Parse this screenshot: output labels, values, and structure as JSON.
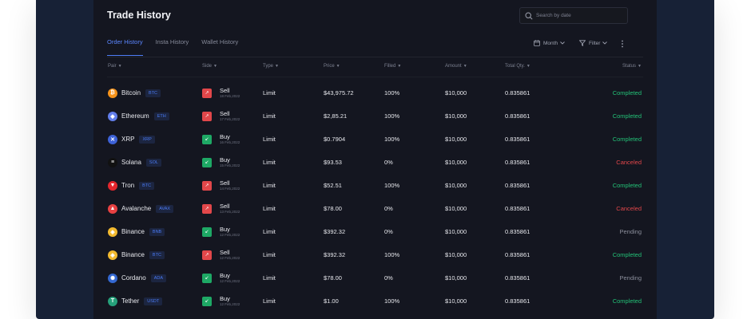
{
  "header": {
    "title": "Trade History"
  },
  "search": {
    "placeholder": "Search by date"
  },
  "tabs": [
    {
      "label": "Order History",
      "active": true
    },
    {
      "label": "Insta History",
      "active": false
    },
    {
      "label": "Wallet History",
      "active": false
    }
  ],
  "toolbar": {
    "month_label": "Month",
    "filter_label": "Filter"
  },
  "columns": {
    "pair": "Pair",
    "side": "Side",
    "type": "Type",
    "price": "Price",
    "filled": "Filled",
    "amount": "Amount",
    "total": "Total Qty.",
    "status": "Status"
  },
  "colors": {
    "accent": "#4f7df7",
    "completed": "#23c277",
    "canceled": "#e2474a",
    "pending": "#8b8e9b",
    "sell": "#e2474a",
    "buy": "#1ea965"
  },
  "rows": [
    {
      "coin": "Bitcoin",
      "ticker": "BTC",
      "icon_color": "#f7931a",
      "icon_glyph": "₿",
      "side": "Sell",
      "date": "18 Feb,2022",
      "type": "Limit",
      "price": "$43,975.72",
      "filled": "100%",
      "amount": "$10,000",
      "total": "0.835861",
      "status": "Completed"
    },
    {
      "coin": "Ethereum",
      "ticker": "ETH",
      "icon_color": "#627eea",
      "icon_glyph": "◆",
      "side": "Sell",
      "date": "17 Feb,2022",
      "type": "Limit",
      "price": "$2,85.21",
      "filled": "100%",
      "amount": "$10,000",
      "total": "0.835861",
      "status": "Completed"
    },
    {
      "coin": "XRP",
      "ticker": "XRP",
      "icon_color": "#3d62d8",
      "icon_glyph": "✕",
      "side": "Buy",
      "date": "16 Feb,2022",
      "type": "Limit",
      "price": "$0.7904",
      "filled": "100%",
      "amount": "$10,000",
      "total": "0.835861",
      "status": "Completed"
    },
    {
      "coin": "Solana",
      "ticker": "SOL",
      "icon_color": "#111111",
      "icon_glyph": "≡",
      "side": "Buy",
      "date": "15 Feb,2022",
      "type": "Limit",
      "price": "$93.53",
      "filled": "0%",
      "amount": "$10,000",
      "total": "0.835861",
      "status": "Canceled"
    },
    {
      "coin": "Tron",
      "ticker": "BTC",
      "icon_color": "#e3262d",
      "icon_glyph": "▼",
      "side": "Sell",
      "date": "14 Feb,2022",
      "type": "Limit",
      "price": "$52.51",
      "filled": "100%",
      "amount": "$10,000",
      "total": "0.835861",
      "status": "Completed"
    },
    {
      "coin": "Avalanche",
      "ticker": "AVAX",
      "icon_color": "#e84142",
      "icon_glyph": "▲",
      "side": "Sell",
      "date": "13 Feb,2022",
      "type": "Limit",
      "price": "$78.00",
      "filled": "0%",
      "amount": "$10,000",
      "total": "0.835861",
      "status": "Canceled"
    },
    {
      "coin": "Binance",
      "ticker": "BNB",
      "icon_color": "#f3ba2f",
      "icon_glyph": "◈",
      "side": "Buy",
      "date": "12 Feb,2022",
      "type": "Limit",
      "price": "$392.32",
      "filled": "0%",
      "amount": "$10,000",
      "total": "0.835861",
      "status": "Pending"
    },
    {
      "coin": "Binance",
      "ticker": "BTC",
      "icon_color": "#f3ba2f",
      "icon_glyph": "◈",
      "side": "Sell",
      "date": "12 Feb,2022",
      "type": "Limit",
      "price": "$392.32",
      "filled": "100%",
      "amount": "$10,000",
      "total": "0.835861",
      "status": "Completed"
    },
    {
      "coin": "Cordano",
      "ticker": "ADA",
      "icon_color": "#3468d1",
      "icon_glyph": "✺",
      "side": "Buy",
      "date": "12 Feb,2022",
      "type": "Limit",
      "price": "$78.00",
      "filled": "0%",
      "amount": "$10,000",
      "total": "0.835861",
      "status": "Pending"
    },
    {
      "coin": "Tether",
      "ticker": "USDT",
      "icon_color": "#26a17b",
      "icon_glyph": "T",
      "side": "Buy",
      "date": "12 Feb,2022",
      "type": "Limit",
      "price": "$1.00",
      "filled": "100%",
      "amount": "$10,000",
      "total": "0.835861",
      "status": "Completed"
    }
  ]
}
